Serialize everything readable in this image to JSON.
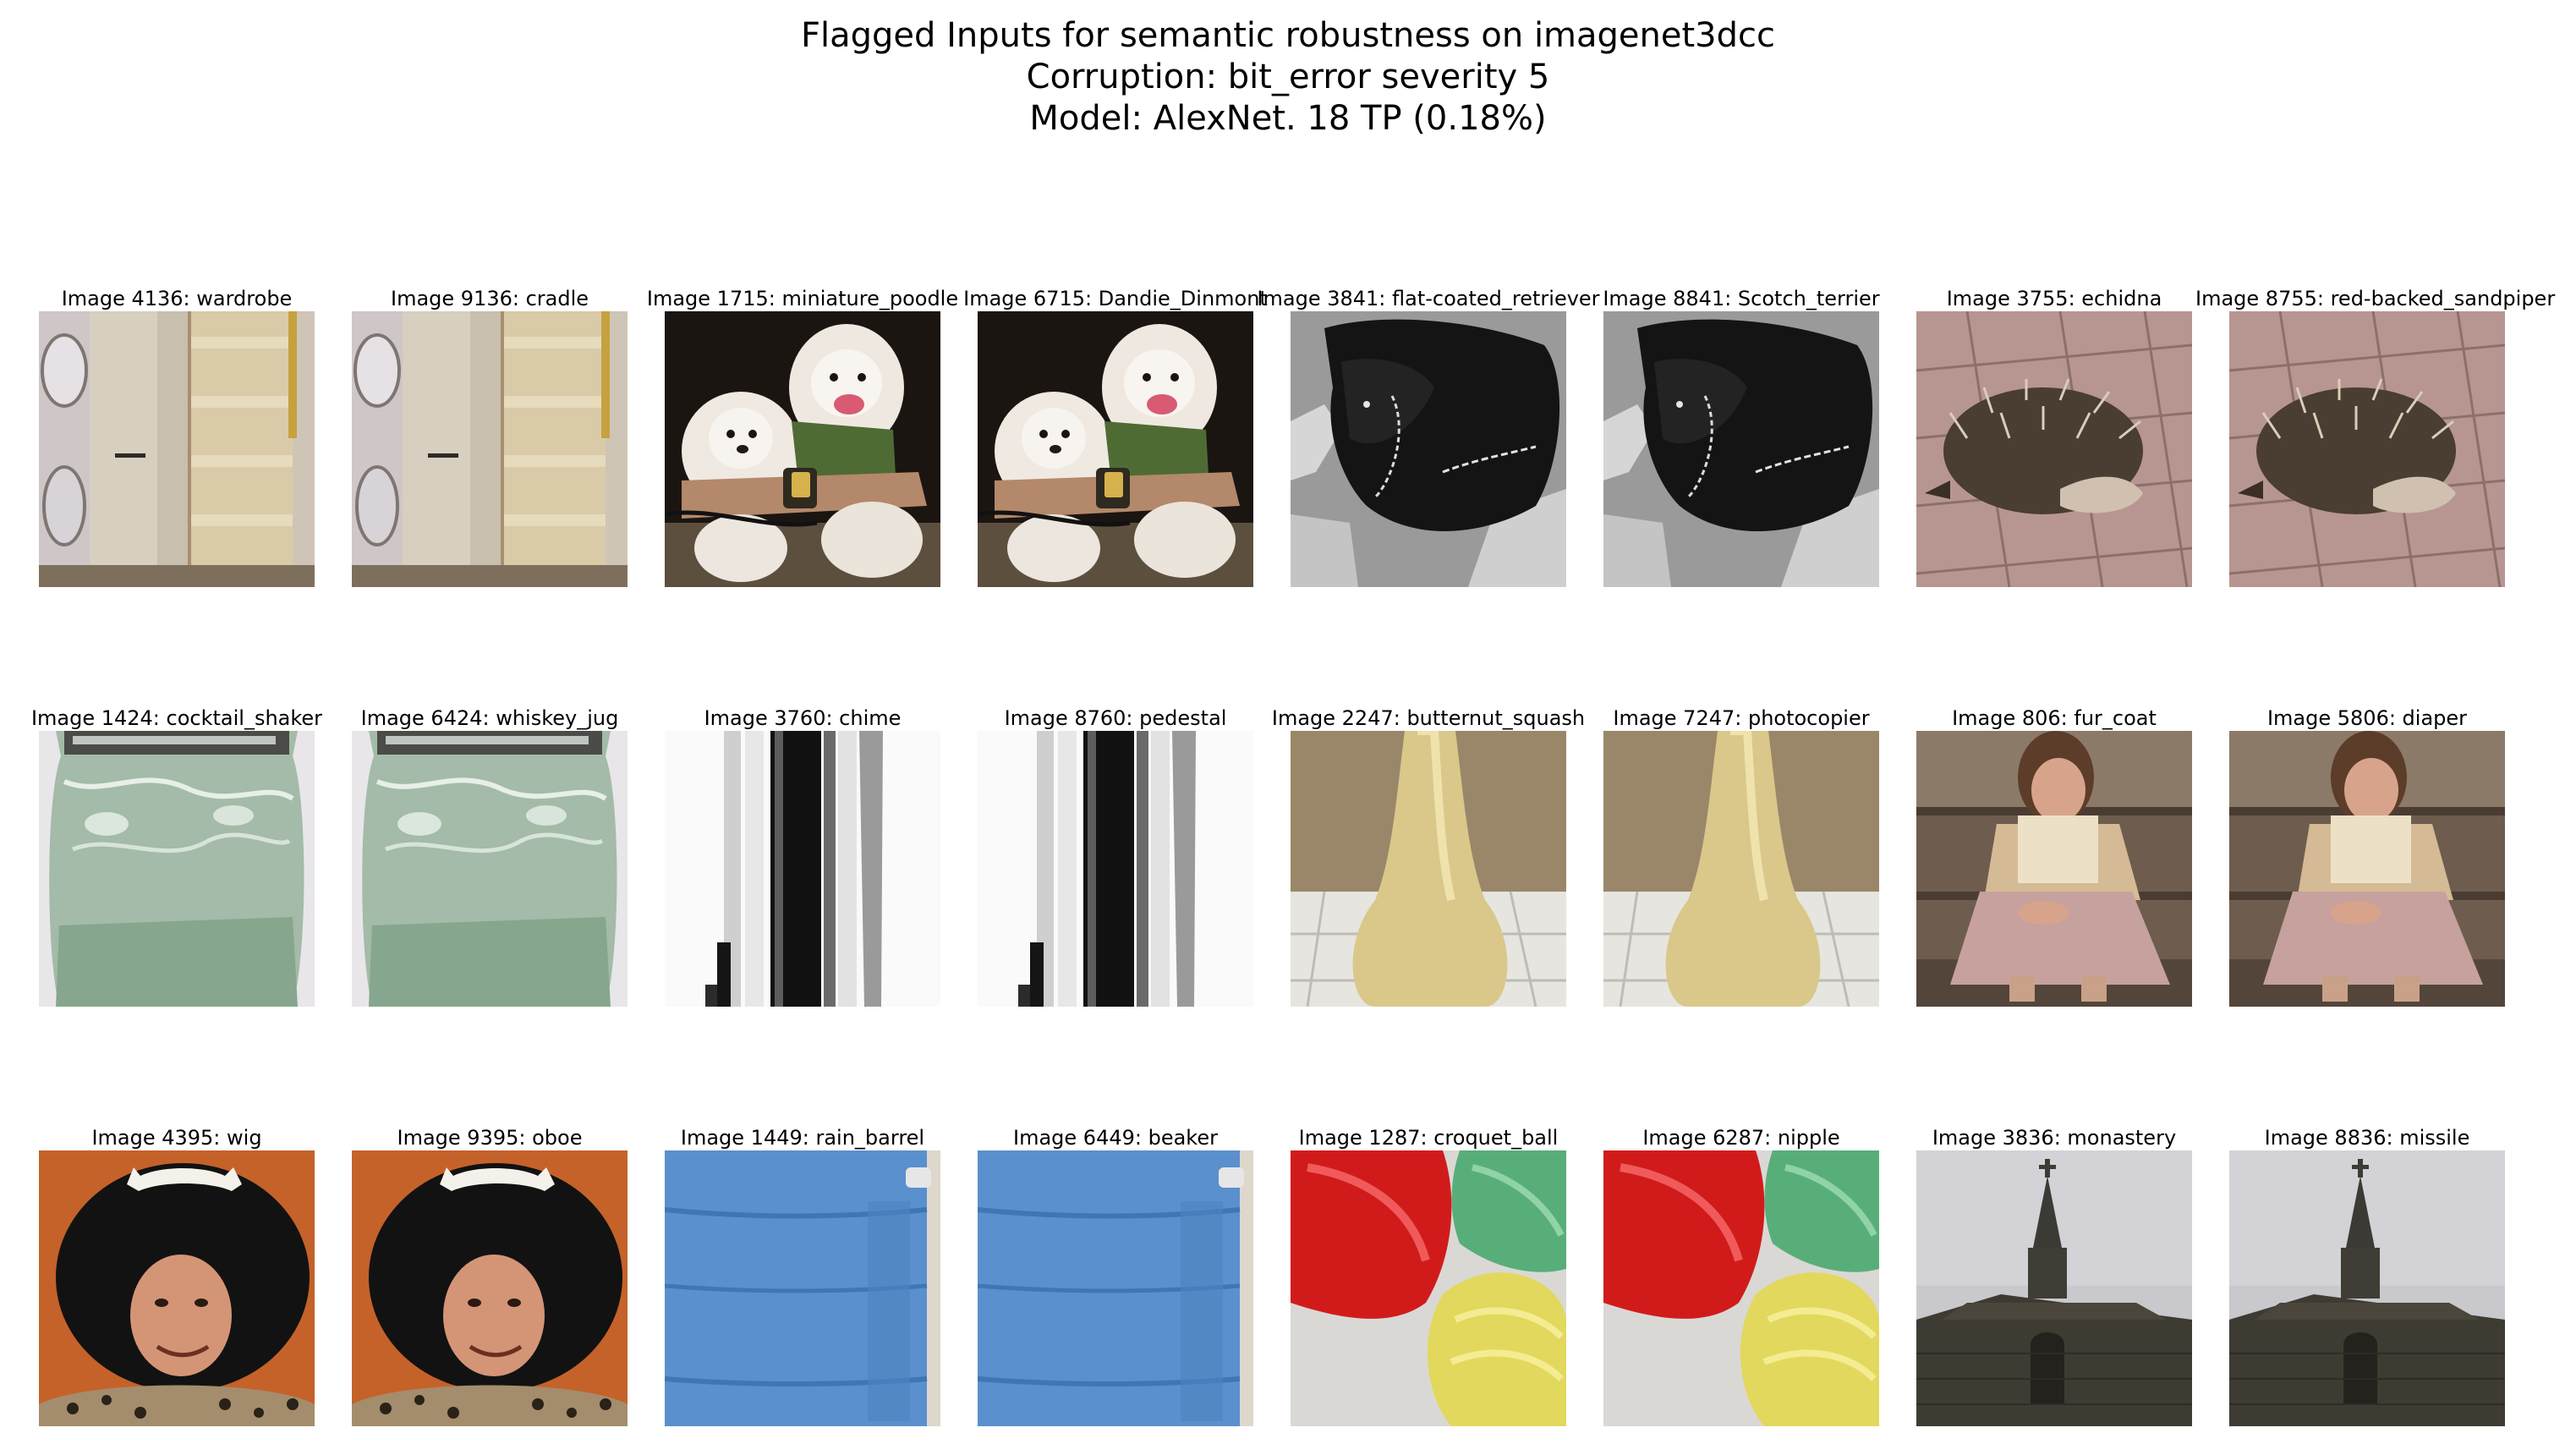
{
  "title_lines": [
    "Flagged Inputs for semantic robustness on imagenet3dcc",
    "Corruption: bit_error severity 5",
    "Model: AlexNet. 18 TP (0.18%)"
  ],
  "rows": [
    [
      {
        "caption": "Image 4136: wardrobe",
        "scene": "laundry-room"
      },
      {
        "caption": "Image 9136: cradle",
        "scene": "laundry-room"
      },
      {
        "caption": "Image 1715: miniature_poodle",
        "scene": "white-poodles"
      },
      {
        "caption": "Image 6715: Dandie_Dinmont",
        "scene": "white-poodles"
      },
      {
        "caption": "Image 3841: flat-coated_retriever",
        "scene": "black-dog-grayscale"
      },
      {
        "caption": "Image 8841: Scotch_terrier",
        "scene": "black-dog-grayscale"
      },
      {
        "caption": "Image 3755: echidna",
        "scene": "echidna-on-bricks"
      },
      {
        "caption": "Image 8755: red-backed_sandpiper",
        "scene": "echidna-on-bricks"
      }
    ],
    [
      {
        "caption": "Image 1424: cocktail_shaker",
        "scene": "green-glass-jar"
      },
      {
        "caption": "Image 6424: whiskey_jug",
        "scene": "green-glass-jar"
      },
      {
        "caption": "Image 3760: chime",
        "scene": "chime-tubes"
      },
      {
        "caption": "Image 8760: pedestal",
        "scene": "chime-tubes"
      },
      {
        "caption": "Image 2247: butternut_squash",
        "scene": "butternut-squash"
      },
      {
        "caption": "Image 7247: photocopier",
        "scene": "butternut-squash"
      },
      {
        "caption": "Image 806: fur_coat",
        "scene": "child-on-steps"
      },
      {
        "caption": "Image 5806: diaper",
        "scene": "child-on-steps"
      }
    ],
    [
      {
        "caption": "Image 4395: wig",
        "scene": "afro-wig-man"
      },
      {
        "caption": "Image 9395: oboe",
        "scene": "afro-wig-man"
      },
      {
        "caption": "Image 1449: rain_barrel",
        "scene": "blue-barrel"
      },
      {
        "caption": "Image 6449: beaker",
        "scene": "blue-barrel"
      },
      {
        "caption": "Image 1287: croquet_ball",
        "scene": "colored-bowls"
      },
      {
        "caption": "Image 6287: nipple",
        "scene": "colored-bowls"
      },
      {
        "caption": "Image 3836: monastery",
        "scene": "stone-church"
      },
      {
        "caption": "Image 8836: missile",
        "scene": "stone-church"
      }
    ]
  ]
}
